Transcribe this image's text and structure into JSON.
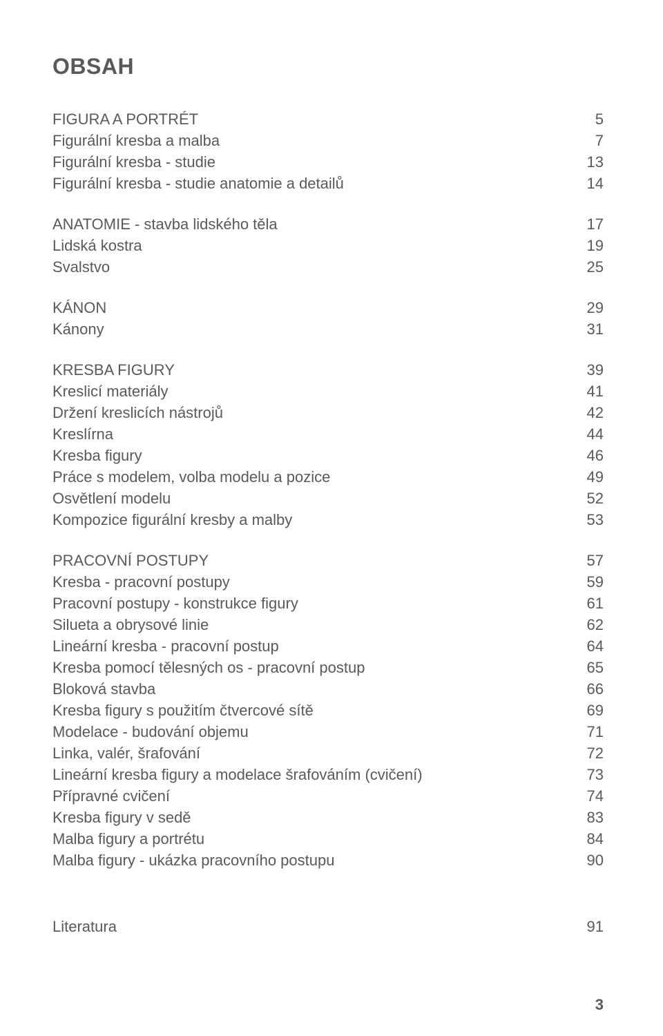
{
  "colors": {
    "text": "#58595b",
    "background": "#ffffff"
  },
  "fontsize": {
    "title": 32,
    "body": 22
  },
  "title": "OBSAH",
  "sections": [
    {
      "rows": [
        {
          "label": "FIGURA A PORTRÉT",
          "page": "5"
        },
        {
          "label": "Figurální kresba a malba",
          "page": "7"
        },
        {
          "label": "Figurální kresba - studie",
          "page": "13"
        },
        {
          "label": "Figurální kresba - studie anatomie a detailů",
          "page": "14"
        }
      ]
    },
    {
      "rows": [
        {
          "label": "ANATOMIE - stavba lidského těla",
          "page": "17"
        },
        {
          "label": "Lidská kostra",
          "page": "19"
        },
        {
          "label": "Svalstvo",
          "page": "25"
        }
      ]
    },
    {
      "rows": [
        {
          "label": "KÁNON",
          "page": "29"
        },
        {
          "label": "Kánony",
          "page": "31"
        }
      ]
    },
    {
      "rows": [
        {
          "label": "KRESBA FIGURY",
          "page": "39"
        },
        {
          "label": "Kreslicí materiály",
          "page": "41"
        },
        {
          "label": "Držení kreslicích nástrojů",
          "page": "42"
        },
        {
          "label": "Kreslírna",
          "page": "44"
        },
        {
          "label": "Kresba figury",
          "page": "46"
        },
        {
          "label": "Práce s modelem, volba modelu a pozice",
          "page": "49"
        },
        {
          "label": "Osvětlení modelu",
          "page": "52"
        },
        {
          "label": "Kompozice figurální kresby a malby",
          "page": "53"
        }
      ]
    },
    {
      "rows": [
        {
          "label": "PRACOVNÍ POSTUPY",
          "page": "57"
        },
        {
          "label": "Kresba - pracovní postupy",
          "page": "59"
        },
        {
          "label": "Pracovní postupy - konstrukce figury",
          "page": "61"
        },
        {
          "label": "Silueta a obrysové linie",
          "page": "62"
        },
        {
          "label": "Lineární kresba - pracovní postup",
          "page": "64"
        },
        {
          "label": "Kresba pomocí tělesných os - pracovní postup",
          "page": "65"
        },
        {
          "label": "Bloková stavba",
          "page": "66"
        },
        {
          "label": "Kresba figury s použitím čtvercové sítě",
          "page": "69"
        },
        {
          "label": "Modelace - budování objemu",
          "page": "71"
        },
        {
          "label": "Linka, valér, šrafování",
          "page": "72"
        },
        {
          "label": "Lineární kresba figury a modelace šrafováním (cvičení)",
          "page": "73"
        },
        {
          "label": "Přípravné cvičení",
          "page": "74"
        },
        {
          "label": "Kresba figury v sedě",
          "page": "83"
        },
        {
          "label": "Malba figury a portrétu",
          "page": "84"
        },
        {
          "label": "Malba figury - ukázka pracovního postupu",
          "page": "90"
        }
      ]
    }
  ],
  "literature": {
    "label": "Literatura",
    "page": "91"
  },
  "pagenum": "3"
}
